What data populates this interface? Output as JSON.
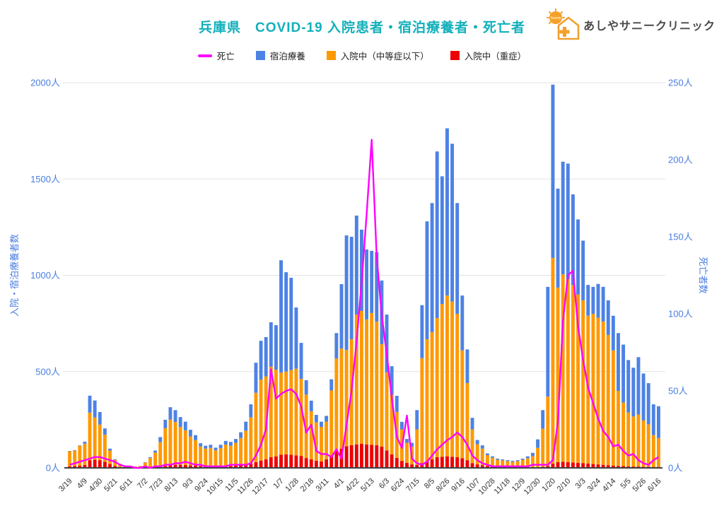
{
  "title": "兵庫県　COVID-19 入院患者・宿泊療養者・死亡者",
  "logo": {
    "text": "あしやサニークリニック",
    "sun_label": "Sunny"
  },
  "legend": {
    "items": [
      {
        "label": "死亡",
        "color": "#ff00ff",
        "type": "line"
      },
      {
        "label": "宿泊療養",
        "color": "#4d82e4",
        "type": "square"
      },
      {
        "label": "入院中（中等症以下）",
        "color": "#ff9900",
        "type": "square"
      },
      {
        "label": "入院中（重症）",
        "color": "#ee0000",
        "type": "square"
      }
    ]
  },
  "colors": {
    "axis_label": "#4a7de0",
    "gridline": "#e3e3e3",
    "baseline": "#424242",
    "x_label": "#333333",
    "title": "#13b0bb"
  },
  "chart_data": {
    "type": "bar",
    "subtype": "stacked-bars-with-line-overlay",
    "title": "兵庫県　COVID-19 入院患者・宿泊療養者・死亡者",
    "x_is_weekly_dates": true,
    "x_labels": [
      "3/19",
      "4/9",
      "4/30",
      "5/21",
      "6/11",
      "7/2",
      "7/23",
      "8/13",
      "9/3",
      "9/24",
      "10/15",
      "11/5",
      "11/26",
      "12/17",
      "1/7",
      "1/28",
      "2/18",
      "3/11",
      "4/1",
      "4/22",
      "5/13",
      "6/3",
      "6/24",
      "7/15",
      "8/5",
      "8/26",
      "9/16",
      "10/7",
      "10/28",
      "11/18",
      "12/9",
      "12/30",
      "1/20",
      "2/10",
      "3/3",
      "3/24",
      "4/14",
      "5/5",
      "5/26",
      "6/16"
    ],
    "label_every_n_bars": 3,
    "left_axis": {
      "title": "入院・宿泊療養者数",
      "max": 2000,
      "tick_values": [
        0,
        500,
        1000,
        1500,
        2000
      ],
      "ticks": [
        "0人",
        "500人",
        "1000人",
        "1500人",
        "2000人"
      ]
    },
    "right_axis": {
      "title": "死亡者数",
      "max": 250,
      "tick_values": [
        0,
        50,
        100,
        150,
        200,
        250
      ],
      "ticks": [
        "0人",
        "50人",
        "100人",
        "150人",
        "200人",
        "250人"
      ]
    },
    "grid": "horizontal",
    "legend_position": "top",
    "series": [
      {
        "name": "入院中（重症）",
        "type": "bar",
        "stack": true,
        "color": "#ee0000",
        "axis": "left",
        "values": [
          8,
          10,
          12,
          15,
          40,
          42,
          40,
          32,
          20,
          10,
          5,
          3,
          2,
          1,
          1,
          2,
          3,
          4,
          6,
          10,
          14,
          16,
          16,
          15,
          13,
          11,
          9,
          8,
          8,
          7,
          8,
          9,
          10,
          12,
          15,
          18,
          22,
          30,
          38,
          45,
          55,
          60,
          68,
          70,
          68,
          65,
          62,
          51,
          44,
          37,
          33,
          44,
          62,
          88,
          100,
          112,
          118,
          122,
          125,
          122,
          120,
          118,
          110,
          90,
          70,
          52,
          36,
          26,
          18,
          15,
          25,
          35,
          45,
          55,
          58,
          60,
          58,
          55,
          50,
          40,
          25,
          18,
          14,
          10,
          8,
          6,
          5,
          4,
          4,
          3,
          3,
          3,
          3,
          4,
          6,
          10,
          22,
          30,
          32,
          30,
          28,
          26,
          25,
          22,
          20,
          18,
          16,
          14,
          12,
          10,
          9,
          8,
          7,
          7,
          6,
          6,
          5,
          5
        ]
      },
      {
        "name": "入院中（中等症以下）",
        "type": "bar",
        "stack": true,
        "color": "#ff9900",
        "axis": "left",
        "values": [
          78,
          80,
          103,
          111,
          247,
          220,
          185,
          140,
          70,
          32,
          16,
          8,
          7,
          6,
          8,
          26,
          48,
          76,
          128,
          196,
          237,
          222,
          196,
          180,
          150,
          133,
          102,
          92,
          96,
          84,
          95,
          112,
          105,
          118,
          140,
          175,
          240,
          360,
          420,
          430,
          470,
          450,
          427,
          430,
          440,
          450,
          400,
          330,
          250,
          200,
          180,
          196,
          340,
          480,
          520,
          500,
          550,
          674,
          690,
          649,
          684,
          642,
          532,
          406,
          310,
          238,
          164,
          104,
          92,
          185,
          545,
          633,
          660,
          723,
          793,
          835,
          805,
          745,
          560,
          400,
          175,
          105,
          86,
          56,
          45,
          36,
          34,
          31,
          28,
          32,
          39,
          47,
          58,
          100,
          198,
          360,
          1068,
          906,
          973,
          950,
          922,
          874,
          845,
          768,
          780,
          762,
          744,
          676,
          598,
          390,
          330,
          280,
          260,
          270,
          240,
          220,
          165,
          150
        ]
      },
      {
        "name": "宿泊療養",
        "type": "bar",
        "stack": true,
        "color": "#4d82e4",
        "axis": "left",
        "values": [
          2,
          2,
          2,
          10,
          88,
          88,
          65,
          33,
          10,
          3,
          1,
          1,
          1,
          1,
          1,
          2,
          4,
          10,
          26,
          44,
          64,
          62,
          52,
          45,
          35,
          26,
          17,
          15,
          16,
          14,
          17,
          19,
          20,
          20,
          30,
          47,
          68,
          156,
          202,
          204,
          231,
          231,
          583,
          516,
          479,
          318,
          187,
          74,
          55,
          38,
          27,
          30,
          58,
          132,
          334,
          595,
          532,
          514,
          422,
          363,
          323,
          360,
          331,
          300,
          148,
          84,
          39,
          20,
          20,
          100,
          275,
          612,
          670,
          865,
          663,
          868,
          820,
          575,
          285,
          175,
          60,
          22,
          17,
          9,
          7,
          6,
          5,
          5,
          5,
          5,
          6,
          10,
          17,
          44,
          96,
          570,
          900,
          514,
          585,
          600,
          470,
          390,
          310,
          160,
          140,
          175,
          180,
          180,
          180,
          300,
          301,
          272,
          253,
          298,
          244,
          214,
          160,
          165
        ]
      },
      {
        "name": "死亡",
        "type": "line",
        "stack": false,
        "color": "#ff00ff",
        "axis": "right",
        "values": [
          2,
          3,
          4,
          5,
          6,
          7,
          7,
          6,
          5,
          4,
          2,
          1,
          1,
          0,
          0,
          1,
          0,
          1,
          1,
          2,
          2,
          3,
          3,
          4,
          3,
          2,
          2,
          1,
          1,
          1,
          1,
          1,
          2,
          2,
          2,
          2,
          3,
          8,
          15,
          25,
          64,
          45,
          48,
          50,
          51,
          48,
          40,
          23,
          28,
          11,
          9,
          9,
          7,
          12,
          6,
          28,
          50,
          82,
          120,
          165,
          213,
          137,
          99,
          74,
          45,
          20,
          13,
          34,
          6,
          3,
          2,
          4,
          8,
          12,
          15,
          18,
          20,
          23,
          20,
          15,
          8,
          5,
          3,
          2,
          1,
          1,
          1,
          1,
          1,
          1,
          1,
          1,
          2,
          2,
          2,
          2,
          5,
          30,
          95,
          125,
          128,
          92,
          70,
          52,
          42,
          32,
          24,
          20,
          14,
          15,
          11,
          8,
          9,
          5,
          3,
          2,
          5,
          7
        ]
      }
    ]
  }
}
